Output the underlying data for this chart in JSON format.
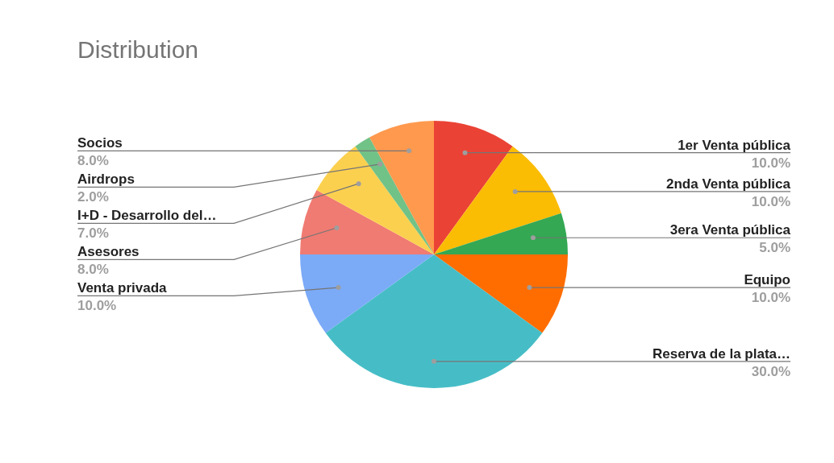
{
  "chart_data": {
    "type": "pie",
    "title": "Distribution",
    "categories": [
      "1er Venta pública",
      "2nda Venta pública",
      "3era Venta pública",
      "Equipo",
      "Reserva de la plata…",
      "Venta privada",
      "Asesores",
      "I+D - Desarrollo del…",
      "Airdrops",
      "Socios"
    ],
    "values": [
      10,
      10,
      5,
      10,
      30,
      10,
      8,
      7,
      2,
      8
    ],
    "value_labels": [
      "10.0%",
      "10.0%",
      "5.0%",
      "10.0%",
      "30.0%",
      "10.0%",
      "8.0%",
      "7.0%",
      "2.0%",
      "8.0%"
    ],
    "colors": [
      "#ea4335",
      "#fbbc04",
      "#34a853",
      "#ff6d01",
      "#46bdc6",
      "#7baaf7",
      "#f07b72",
      "#fcd04f",
      "#71c287",
      "#ff994d"
    ]
  }
}
